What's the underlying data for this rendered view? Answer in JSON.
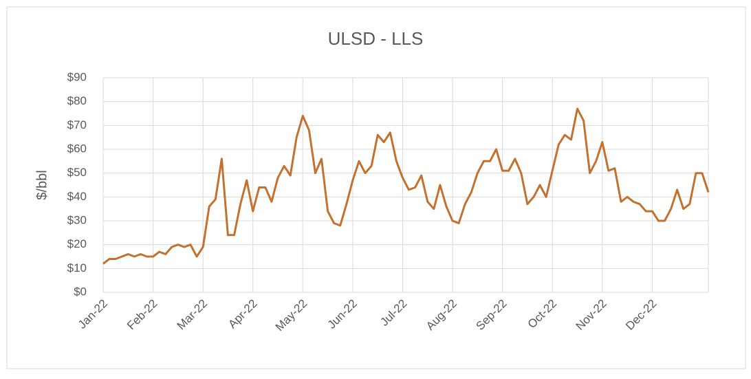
{
  "chart_data": {
    "type": "line",
    "title": "ULSD - LLS",
    "y_label": "$/bbl",
    "categories": [
      "Jan-22",
      null,
      null,
      null,
      null,
      null,
      null,
      null,
      "Feb-22",
      null,
      null,
      null,
      null,
      null,
      null,
      null,
      "Mar-22",
      null,
      null,
      null,
      null,
      null,
      null,
      null,
      "Apr-22",
      null,
      null,
      null,
      null,
      null,
      null,
      null,
      "May-22",
      null,
      null,
      null,
      null,
      null,
      null,
      null,
      "Jun-22",
      null,
      null,
      null,
      null,
      null,
      null,
      null,
      "Jul-22",
      null,
      null,
      null,
      null,
      null,
      null,
      null,
      "Aug-22",
      null,
      null,
      null,
      null,
      null,
      null,
      null,
      "Sep-22",
      null,
      null,
      null,
      null,
      null,
      null,
      null,
      "Oct-22",
      null,
      null,
      null,
      null,
      null,
      null,
      null,
      "Nov-22",
      null,
      null,
      null,
      null,
      null,
      null,
      null,
      "Dec-22",
      null,
      null,
      null,
      null,
      null,
      null,
      null,
      null,
      null
    ],
    "series": [
      {
        "name": "ULSD - LLS",
        "color": "#c3712f",
        "values": [
          12,
          14,
          14,
          15,
          16,
          15,
          16,
          15,
          15,
          17,
          16,
          19,
          20,
          19,
          20,
          15,
          19,
          36,
          39,
          56,
          24,
          24,
          37,
          47,
          34,
          44,
          44,
          38,
          48,
          53,
          49,
          65,
          74,
          68,
          50,
          56,
          34,
          29,
          28,
          37,
          47,
          55,
          50,
          53,
          66,
          63,
          67,
          55,
          48,
          43,
          44,
          49,
          38,
          35,
          45,
          36,
          30,
          29,
          37,
          42,
          50,
          55,
          55,
          60,
          51,
          51,
          56,
          50,
          37,
          40,
          45,
          40,
          51,
          62,
          66,
          64,
          77,
          72,
          50,
          55,
          63,
          51,
          52,
          38,
          40,
          38,
          37,
          34,
          34,
          30,
          30,
          35,
          43,
          35,
          37,
          50,
          50,
          42
        ]
      }
    ],
    "ylim": [
      0,
      90
    ],
    "yticks": [
      {
        "value": 0,
        "label": "$0"
      },
      {
        "value": 10,
        "label": "$10"
      },
      {
        "value": 20,
        "label": "$20"
      },
      {
        "value": 30,
        "label": "$30"
      },
      {
        "value": 40,
        "label": "$40"
      },
      {
        "value": 50,
        "label": "$50"
      },
      {
        "value": 60,
        "label": "$60"
      },
      {
        "value": 70,
        "label": "$70"
      },
      {
        "value": 80,
        "label": "$80"
      },
      {
        "value": 90,
        "label": "$90"
      }
    ],
    "grid": true
  }
}
